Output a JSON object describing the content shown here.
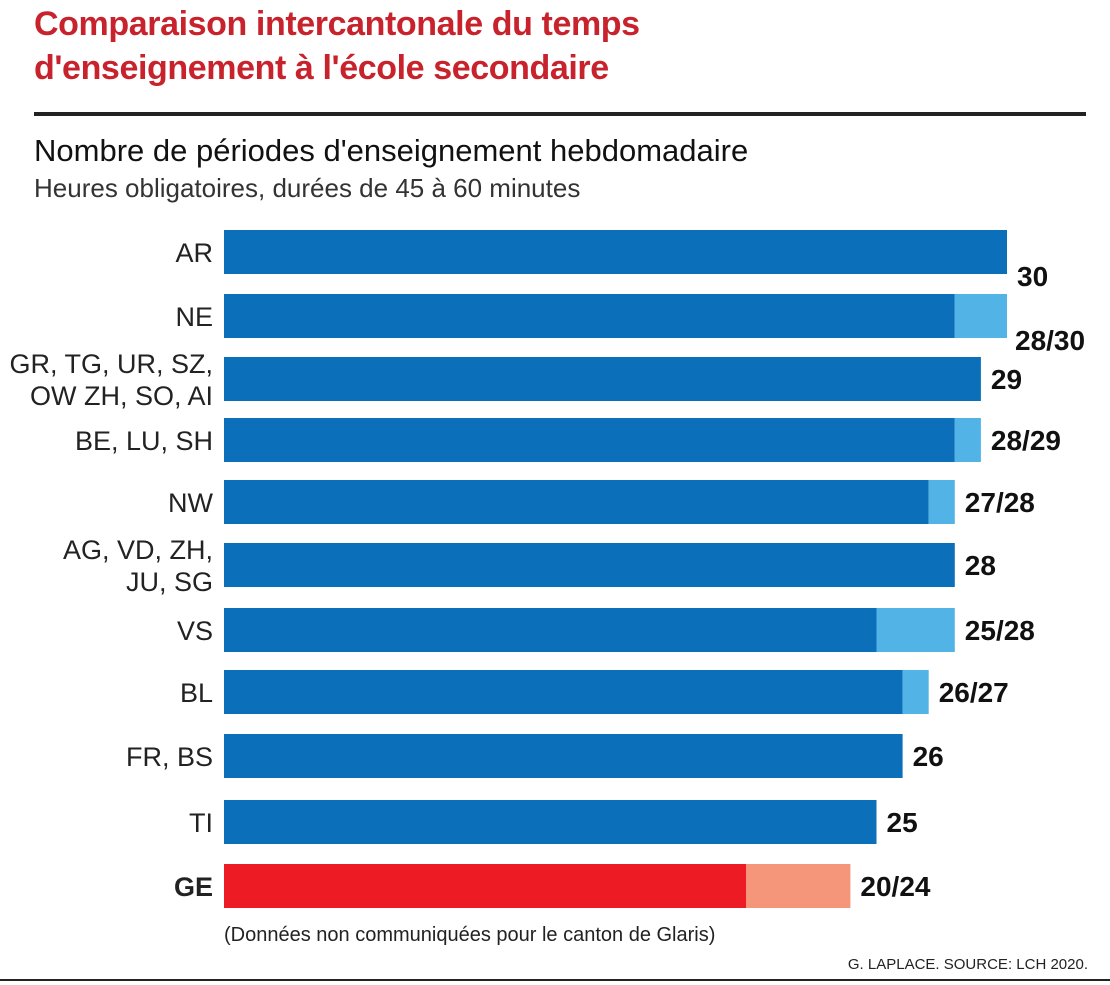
{
  "header": {
    "title_line1": "Comparaison intercantonale du temps",
    "title_line2": "d'enseignement à l'école secondaire",
    "subtitle": "Nombre de périodes d'enseignement hebdomadaire",
    "subsubtitle": "Heures obligatoires, durées de 45 à 60 minutes"
  },
  "footer": {
    "note": "(Données non communiquées pour le canton de Glaris)",
    "source": "G. LAPLACE. SOURCE: LCH 2020."
  },
  "colors": {
    "title": "#c8232c",
    "bar_min": "#0b6fba",
    "bar_range": "#52b4e6",
    "ge_min": "#ed1c24",
    "ge_range": "#f5967a"
  },
  "chart_data": {
    "type": "bar",
    "orientation": "horizontal",
    "stacked": true,
    "xlim": [
      0,
      30
    ],
    "categories": [
      [
        "AR"
      ],
      [
        "NE"
      ],
      [
        "GR, TG, UR, SZ,",
        "OW ZH, SO, AI"
      ],
      [
        "BE, LU, SH"
      ],
      [
        "NW"
      ],
      [
        "AG, VD, ZH,",
        "JU, SG"
      ],
      [
        "VS"
      ],
      [
        "BL"
      ],
      [
        "FR, BS"
      ],
      [
        "TI"
      ],
      [
        "GE"
      ]
    ],
    "min_values": [
      30,
      28,
      29,
      28,
      27,
      28,
      25,
      26,
      26,
      25,
      20
    ],
    "max_values": [
      30,
      30,
      29,
      29,
      28,
      28,
      28,
      27,
      26,
      25,
      24
    ],
    "data_labels": [
      "30",
      "28/30",
      "29",
      "28/29",
      "27/28",
      "28",
      "25/28",
      "26/27",
      "26",
      "25",
      "20/24"
    ],
    "highlight": "GE"
  }
}
